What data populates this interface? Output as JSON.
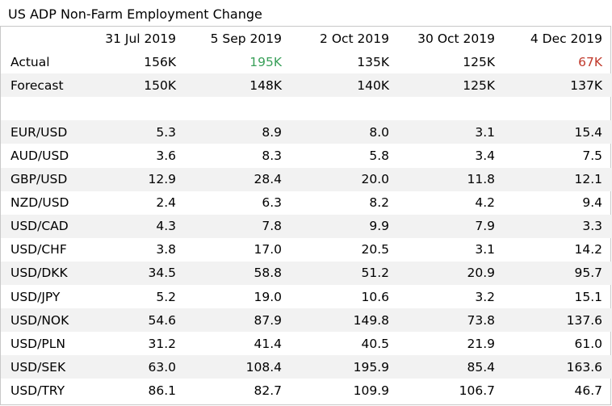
{
  "chart_data": {
    "type": "table",
    "title": "US ADP Non-Farm Employment Change",
    "columns": [
      "31 Jul 2019",
      "5 Sep 2019",
      "2 Oct 2019",
      "30 Oct 2019",
      "4 Dec 2019"
    ],
    "colors": {
      "beat": "#3aa05a",
      "miss": "#c0392b",
      "text": "#000000",
      "stripe": "#f2f2f2"
    },
    "rows": [
      {
        "label": "Actual",
        "values": [
          "156K",
          "195K",
          "135K",
          "125K",
          "67K"
        ],
        "highlight": [
          null,
          "beat",
          null,
          null,
          "miss"
        ]
      },
      {
        "label": "Forecast",
        "values": [
          "150K",
          "148K",
          "140K",
          "125K",
          "137K"
        ]
      },
      {
        "label": "",
        "values": [
          "",
          "",
          "",
          "",
          ""
        ]
      },
      {
        "label": "EUR/USD",
        "values": [
          "5.3",
          "8.9",
          "8.0",
          "3.1",
          "15.4"
        ]
      },
      {
        "label": "AUD/USD",
        "values": [
          "3.6",
          "8.3",
          "5.8",
          "3.4",
          "7.5"
        ]
      },
      {
        "label": "GBP/USD",
        "values": [
          "12.9",
          "28.4",
          "20.0",
          "11.8",
          "12.1"
        ]
      },
      {
        "label": "NZD/USD",
        "values": [
          "2.4",
          "6.3",
          "8.2",
          "4.2",
          "9.4"
        ]
      },
      {
        "label": "USD/CAD",
        "values": [
          "4.3",
          "7.8",
          "9.9",
          "7.9",
          "3.3"
        ]
      },
      {
        "label": "USD/CHF",
        "values": [
          "3.8",
          "17.0",
          "20.5",
          "3.1",
          "14.2"
        ]
      },
      {
        "label": "USD/DKK",
        "values": [
          "34.5",
          "58.8",
          "51.2",
          "20.9",
          "95.7"
        ]
      },
      {
        "label": "USD/JPY",
        "values": [
          "5.2",
          "19.0",
          "10.6",
          "3.2",
          "15.1"
        ]
      },
      {
        "label": "USD/NOK",
        "values": [
          "54.6",
          "87.9",
          "149.8",
          "73.8",
          "137.6"
        ]
      },
      {
        "label": "USD/PLN",
        "values": [
          "31.2",
          "41.4",
          "40.5",
          "21.9",
          "61.0"
        ]
      },
      {
        "label": "USD/SEK",
        "values": [
          "63.0",
          "108.4",
          "195.9",
          "85.4",
          "163.6"
        ]
      },
      {
        "label": "USD/TRY",
        "values": [
          "86.1",
          "82.7",
          "109.9",
          "106.7",
          "46.7"
        ]
      }
    ]
  }
}
